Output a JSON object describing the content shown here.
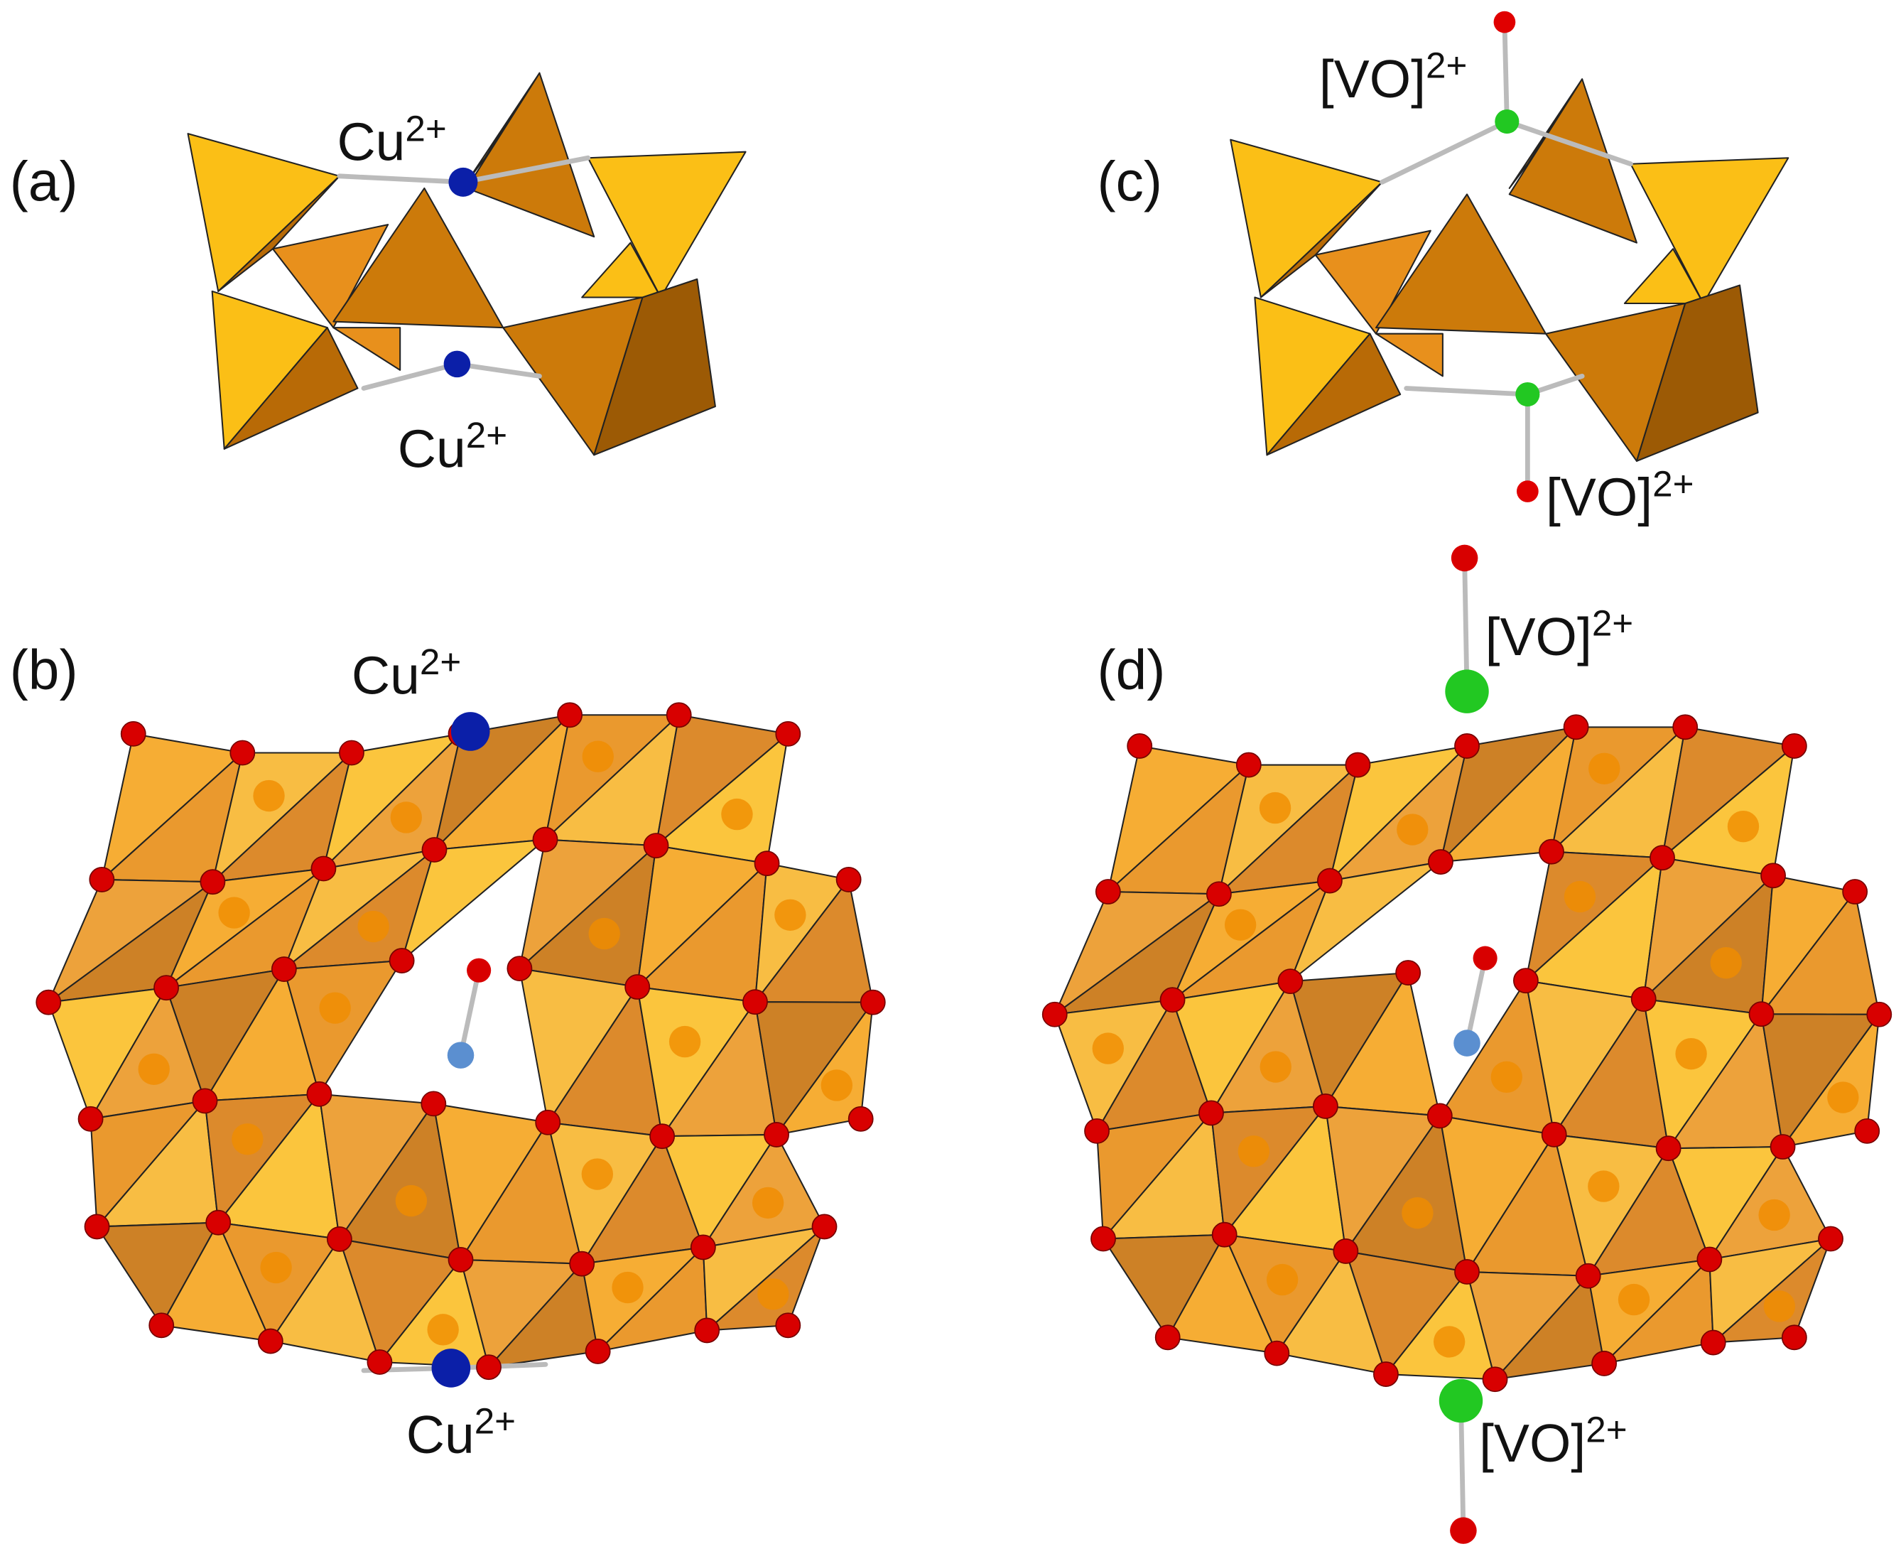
{
  "panels": [
    {
      "label": "(a)",
      "ions": [
        {
          "base": "Cu",
          "sup": "2+"
        },
        {
          "base": "Cu",
          "sup": "2+"
        }
      ]
    },
    {
      "label": "(b)",
      "ions": [
        {
          "base": "Cu",
          "sup": "2+"
        },
        {
          "base": "Cu",
          "sup": "2+"
        }
      ]
    },
    {
      "label": "(c)",
      "ions": [
        {
          "base": "[VO]",
          "sup": "2+"
        },
        {
          "base": "[VO]",
          "sup": "2+"
        }
      ]
    },
    {
      "label": "(d)",
      "ions": [
        {
          "base": "[VO]",
          "sup": "2+"
        },
        {
          "base": "[VO]",
          "sup": "2+"
        }
      ]
    }
  ]
}
